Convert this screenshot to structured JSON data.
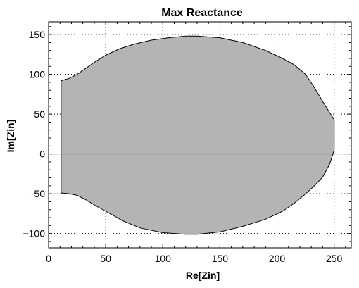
{
  "chart_data": {
    "type": "area",
    "title": "Max Reactance",
    "xlabel": "Re[Zin]",
    "ylabel": "Im[Zin]",
    "xlim": [
      0,
      265
    ],
    "ylim": [
      -118,
      166
    ],
    "xticks": [
      0,
      50,
      100,
      150,
      200,
      250
    ],
    "yticks": [
      -100,
      -50,
      0,
      50,
      100,
      150
    ],
    "xtick_labels": [
      "0",
      "50",
      "100",
      "150",
      "200",
      "250"
    ],
    "ytick_labels": [
      "−100",
      "−50",
      "0",
      "50",
      "100",
      "150"
    ],
    "grid": true,
    "grid_style": "dotted",
    "zero_line": true,
    "colors": {
      "fill": "#b4b4b4",
      "outline": "#000000",
      "background": "#ffffff"
    },
    "boundary": {
      "x": [
        11,
        18,
        25,
        32,
        40,
        50,
        62,
        75,
        90,
        105,
        120,
        130,
        150,
        170,
        190,
        205,
        215,
        225,
        232,
        240,
        246,
        250,
        250,
        246,
        240,
        232,
        225,
        215,
        205,
        190,
        170,
        150,
        130,
        120,
        100,
        80,
        65,
        50,
        40,
        32,
        25,
        18,
        11
      ],
      "y": [
        92,
        95,
        100,
        107,
        115,
        124,
        132,
        138,
        143,
        146,
        148,
        148,
        146,
        140,
        130,
        120,
        112,
        100,
        85,
        66,
        52,
        43,
        5,
        -13,
        -29,
        -41,
        -50,
        -62,
        -72,
        -82,
        -91,
        -98,
        -101,
        -101,
        -99,
        -93,
        -84,
        -72,
        -64,
        -57,
        -52,
        -50,
        -49
      ]
    }
  }
}
